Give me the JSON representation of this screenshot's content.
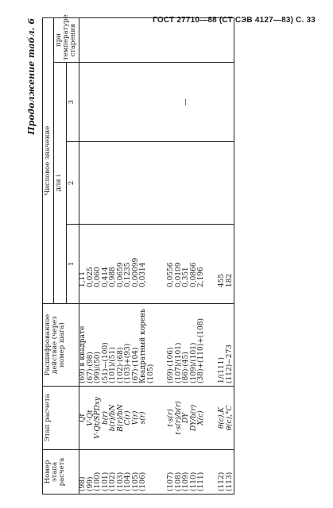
{
  "header": {
    "text": "ГОСТ 27710—88 (СТ СЭВ 4127—83) С. 33"
  },
  "caption": "Продолжение табл. 6",
  "columns": {
    "number": "Номер этапа расчета",
    "stage": "Этап расчета",
    "action": "Расшифрованное действие (через номер шага)",
    "value_group": "Числовое значение",
    "for_i": "для i",
    "i1": "1",
    "i2": "2",
    "i3": "3",
    "temp": "при температуре старения"
  },
  "rows": [
    {
      "n": "(98)",
      "stage": "Qt",
      "action": "(69) в квадрате",
      "v1": "1,11",
      "v3": ""
    },
    {
      "n": "(99)",
      "stage": "V·Qt",
      "action": "(67)·(98)",
      "v1": "0,025",
      "v3": ""
    },
    {
      "n": "(100)",
      "stage": "V·Qt/SPDxy",
      "action": "(99)/(50)",
      "v1": "0,060",
      "v3": ""
    },
    {
      "n": "(101)",
      "stage": "b(r)",
      "action": "(51)—(100)",
      "v1": "0,414",
      "v3": ""
    },
    {
      "n": "(102)",
      "stage": "b(r)/bN",
      "action": "(101)/(51)",
      "v1": "0,988",
      "v3": ""
    },
    {
      "n": "(103)",
      "stage": "B(r)/bN",
      "action": "(102)·(68)",
      "v1": "0,0659",
      "v3": ""
    },
    {
      "n": "(104)",
      "stage": "C(r)",
      "action": "(103)+(93)",
      "v1": "0,1235",
      "v3": ""
    },
    {
      "n": "(105)",
      "stage": "V(r)",
      "action": "(67)·(104)",
      "v1": "0,00099",
      "v3": ""
    },
    {
      "n": "(106)",
      "stage": "s(r)",
      "action": "Квадратный корень (105)",
      "v1": "0,0314",
      "v3": ""
    },
    {
      "n": "(107)",
      "stage": "t·s(r)",
      "action": "(69)·(106)",
      "v1": "0,0556",
      "v3": ""
    },
    {
      "n": "(108)",
      "stage": "t·s(r)/b(r)",
      "action": "(107)/(101)",
      "v1": "0,0109",
      "v3": ""
    },
    {
      "n": "(109)",
      "stage": "DY",
      "action": "(86)·(45)",
      "v1": "0,351",
      "v3": "—"
    },
    {
      "n": "(110)",
      "stage": "DY/b(r)",
      "action": "(109)/(101)",
      "v1": "0,0866",
      "v3": ""
    },
    {
      "n": "(111)",
      "stage": "X(c)",
      "action": "(38)+(110)+(108)",
      "v1": "2,196",
      "v3": ""
    },
    {
      "n": "(112)",
      "stage": "θ(c),K",
      "action": "1/(111)",
      "v1": "455",
      "v3": ""
    },
    {
      "n": "(113)",
      "stage": "θ(c),°C",
      "action": "(112)−273",
      "v1": "182",
      "v3": ""
    }
  ]
}
